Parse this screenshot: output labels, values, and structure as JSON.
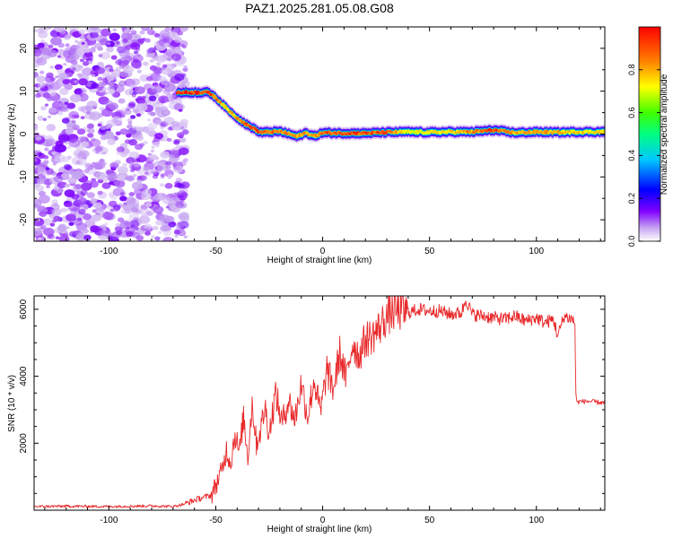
{
  "title": "PAZ1.2025.281.05.08.G08",
  "chart_data": [
    {
      "type": "heatmap",
      "name": "spectrogram",
      "xlabel": "Height of straight line (km)",
      "ylabel": "Frequency (Hz)",
      "xlim": [
        -135,
        132
      ],
      "ylim": [
        -25,
        25
      ],
      "xticks": [
        -100,
        -50,
        0,
        50,
        100
      ],
      "yticks": [
        -20,
        -10,
        0,
        10,
        20
      ],
      "tick_labels_x": [
        "-100",
        "-50",
        "0",
        "50",
        "100"
      ],
      "tick_labels_y": [
        "-20",
        "-10",
        "0",
        "10",
        "20"
      ],
      "noise_region_x": [
        -135,
        -64
      ],
      "ridge": {
        "x": [
          -68,
          -57,
          -55,
          -52,
          -48,
          -44,
          -40,
          -36,
          -32,
          -30,
          -28,
          -24,
          -20,
          -16,
          -12,
          -8,
          -4,
          0,
          10,
          20,
          30,
          40,
          50,
          60,
          70,
          80,
          90,
          100,
          110,
          120,
          132
        ],
        "freq_hz": [
          9.7,
          9.7,
          9.9,
          9.3,
          7.5,
          5.5,
          3.8,
          2.3,
          1.2,
          0.5,
          0.4,
          0.5,
          0.6,
          0.1,
          -0.6,
          0.3,
          -0.5,
          0.3,
          0.2,
          0.2,
          0.4,
          0.5,
          0.4,
          0.5,
          0.5,
          0.9,
          0.3,
          0.5,
          0.4,
          0.5,
          0.5
        ],
        "amplitude": [
          0.95,
          0.97,
          1.0,
          0.9,
          0.7,
          0.6,
          0.75,
          0.85,
          0.8,
          0.9,
          0.85,
          0.8,
          0.75,
          0.8,
          0.7,
          0.75,
          0.7,
          0.85,
          0.9,
          0.85,
          0.85,
          0.5,
          0.55,
          0.6,
          0.75,
          0.95,
          0.7,
          0.7,
          0.65,
          0.6,
          0.55
        ]
      }
    },
    {
      "type": "colorbar",
      "name": "colorbar",
      "label": "Normalized spectral amplitude",
      "range": [
        0,
        1
      ],
      "ticks": [
        0.0,
        0.2,
        0.4,
        0.6,
        0.8
      ],
      "tick_labels": [
        "0.0",
        "0.2",
        "0.4",
        "0.6",
        "0.8"
      ],
      "colors": [
        "#ffffff",
        "#c8a8f0",
        "#8000ff",
        "#0000ff",
        "#00c8ff",
        "#00ff80",
        "#40ff00",
        "#ffff00",
        "#ff8000",
        "#ff0000"
      ]
    },
    {
      "type": "line",
      "name": "snr",
      "xlabel": "Height of straight line (km)",
      "ylabel": "SNR (10 * v/v)",
      "xlim": [
        -135,
        132
      ],
      "ylim": [
        0,
        6400
      ],
      "xticks": [
        -100,
        -50,
        0,
        50,
        100
      ],
      "yticks": [
        2000,
        4000,
        6000
      ],
      "tick_labels_x": [
        "-100",
        "-50",
        "0",
        "50",
        "100"
      ],
      "tick_labels_y": [
        "2000",
        "4000",
        "6000"
      ],
      "color": "#e8282a",
      "series": [
        {
          "name": "SNR",
          "x": [
            -135,
            -120,
            -100,
            -80,
            -70,
            -65,
            -60,
            -56,
            -52,
            -49,
            -47,
            -45,
            -43,
            -41,
            -39,
            -37,
            -35,
            -33,
            -31,
            -29,
            -27,
            -25,
            -22,
            -19,
            -16,
            -13,
            -10,
            -7,
            -4,
            -1,
            2,
            5,
            8,
            11,
            14,
            17,
            20,
            23,
            26,
            29,
            32,
            36,
            40,
            45,
            50,
            55,
            60,
            65,
            67,
            70,
            75,
            80,
            85,
            90,
            95,
            100,
            104,
            108,
            110,
            113,
            115,
            117,
            118,
            118.5,
            119,
            120,
            125,
            132
          ],
          "y": [
            110,
            120,
            110,
            130,
            110,
            180,
            300,
            380,
            450,
            900,
            1200,
            1800,
            1400,
            2300,
            1700,
            2800,
            1600,
            3200,
            2000,
            2400,
            3100,
            2300,
            3500,
            2600,
            3300,
            2700,
            3800,
            2800,
            3900,
            2900,
            4200,
            3600,
            4700,
            3900,
            5000,
            4600,
            5100,
            5200,
            5400,
            5700,
            5900,
            5950,
            5900,
            6000,
            5950,
            5950,
            5850,
            5900,
            6300,
            5850,
            5800,
            5750,
            5700,
            5800,
            5650,
            5750,
            5600,
            5700,
            5200,
            5800,
            5750,
            5700,
            5550,
            3500,
            3200,
            3250,
            3250,
            3200
          ]
        }
      ]
    }
  ]
}
